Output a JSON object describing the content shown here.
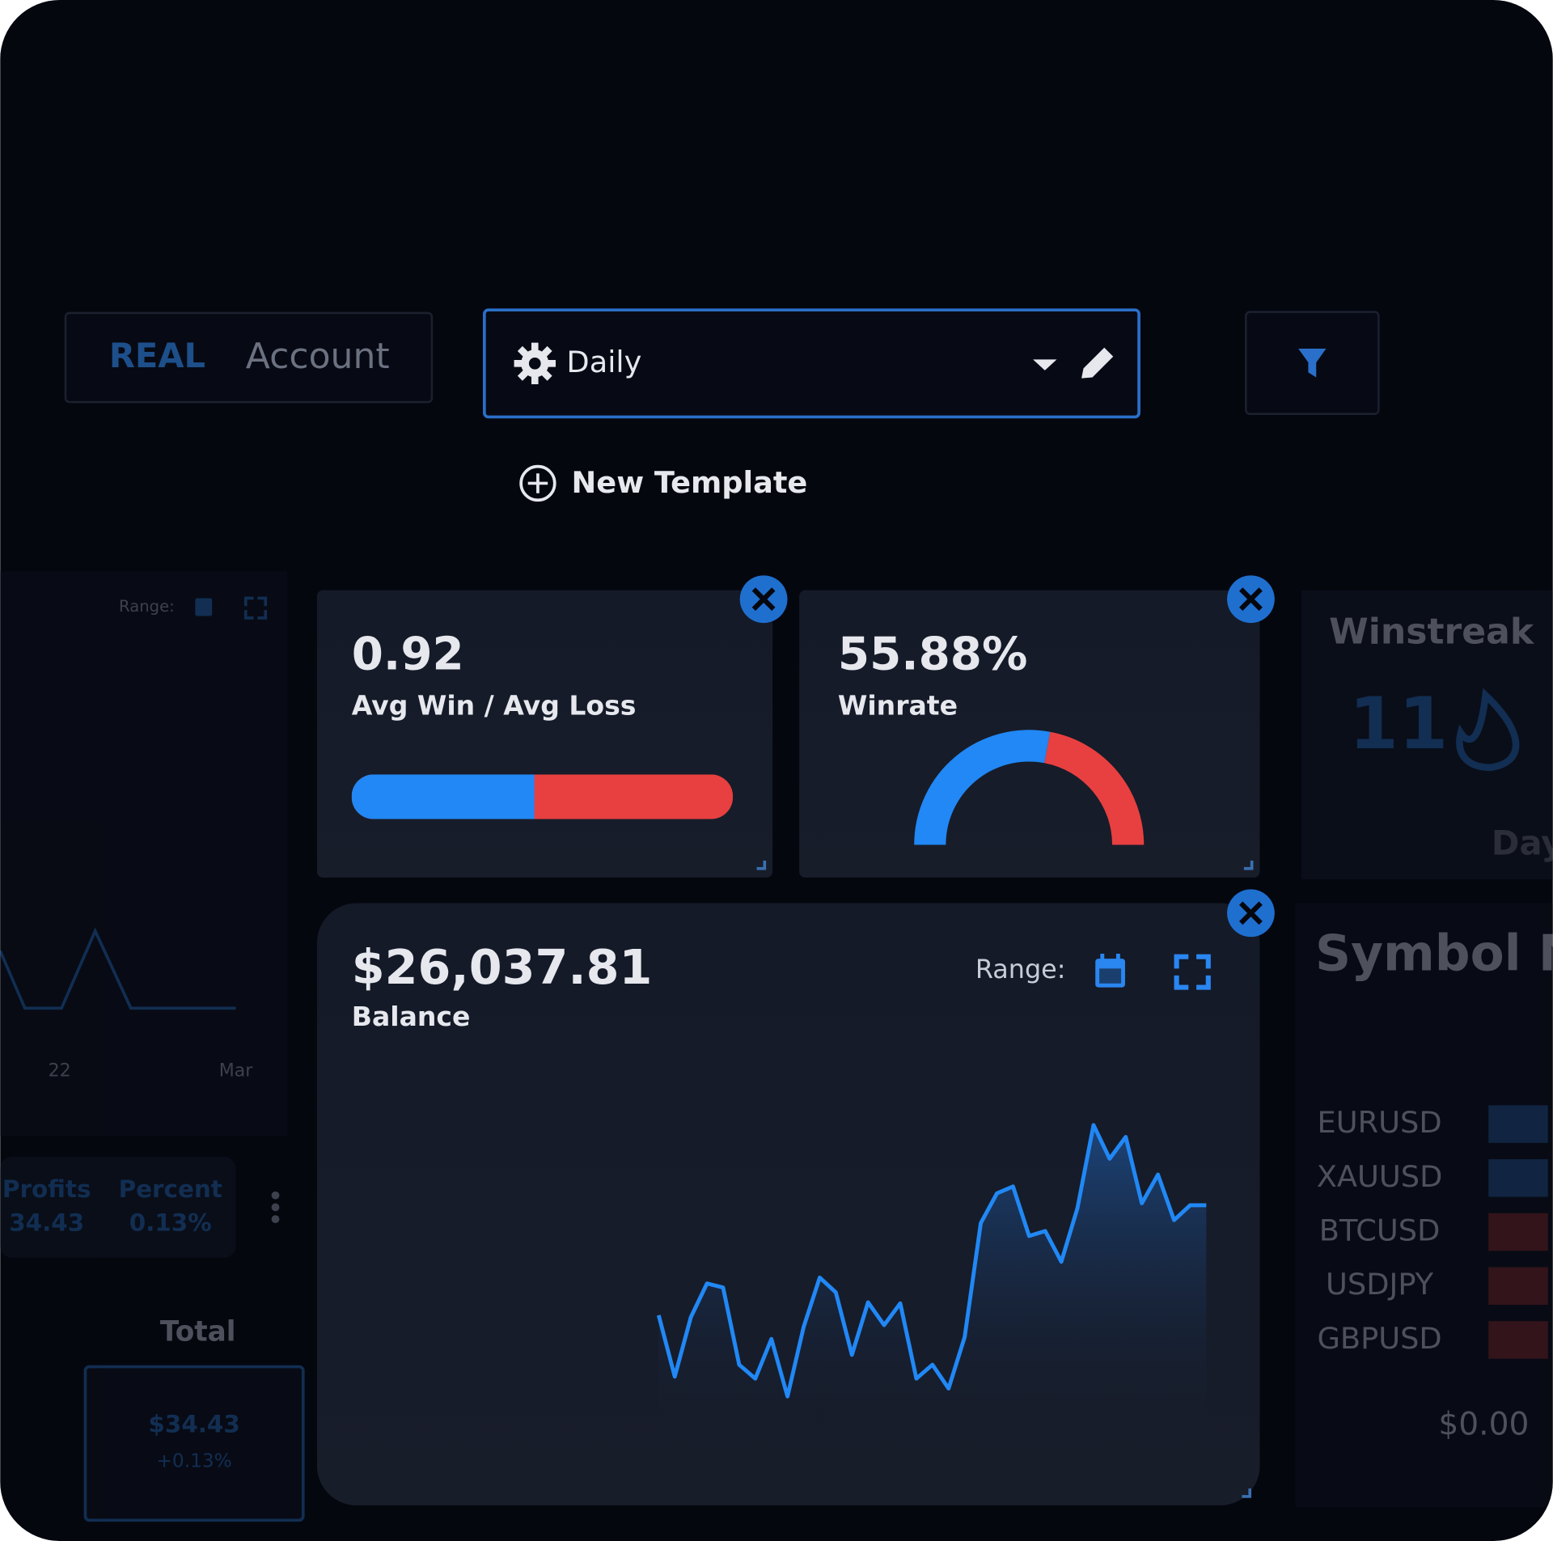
{
  "header": {
    "account": {
      "type": "REAL",
      "label": "Account"
    },
    "template": "Daily",
    "new_template": "New Template"
  },
  "left_panel": {
    "range": "Range:",
    "x_labels": [
      "22",
      "Mar"
    ],
    "profits": {
      "label": "Profits",
      "value": "34.43"
    },
    "percent": {
      "label": "Percent",
      "value": "0.13%"
    },
    "total": {
      "label": "Total",
      "value": "$34.43",
      "change": "+0.13%"
    }
  },
  "avg_win_loss": {
    "value": 0.92,
    "label": "Avg Win / Avg Loss"
  },
  "winrate": {
    "value": 55.88,
    "value_label": "55.88%",
    "label": "Winrate"
  },
  "winstreak": {
    "label": "Winstreak",
    "value": 11,
    "unit": "Day"
  },
  "balance": {
    "value_label": "$26,037.81",
    "label": "Balance",
    "range": "Range:",
    "values": [
      92,
      30,
      90,
      124,
      120,
      42,
      28,
      68,
      10,
      80,
      130,
      115,
      52,
      105,
      82,
      104,
      28,
      42,
      18,
      70,
      185,
      215,
      222,
      172,
      177,
      146,
      200,
      284,
      250,
      272,
      205,
      234,
      188,
      203,
      203
    ]
  },
  "symbols": {
    "title": "Symbol N",
    "rows": [
      "EURUSD",
      "XAUUSD",
      "BTCUSD",
      "USDJPY",
      "GBPUSD"
    ],
    "colors": [
      "#1c3d6b",
      "#1c3d6b",
      "#5a1f26",
      "#5a1f26",
      "#5a1f26"
    ],
    "total": "$0.00"
  }
}
